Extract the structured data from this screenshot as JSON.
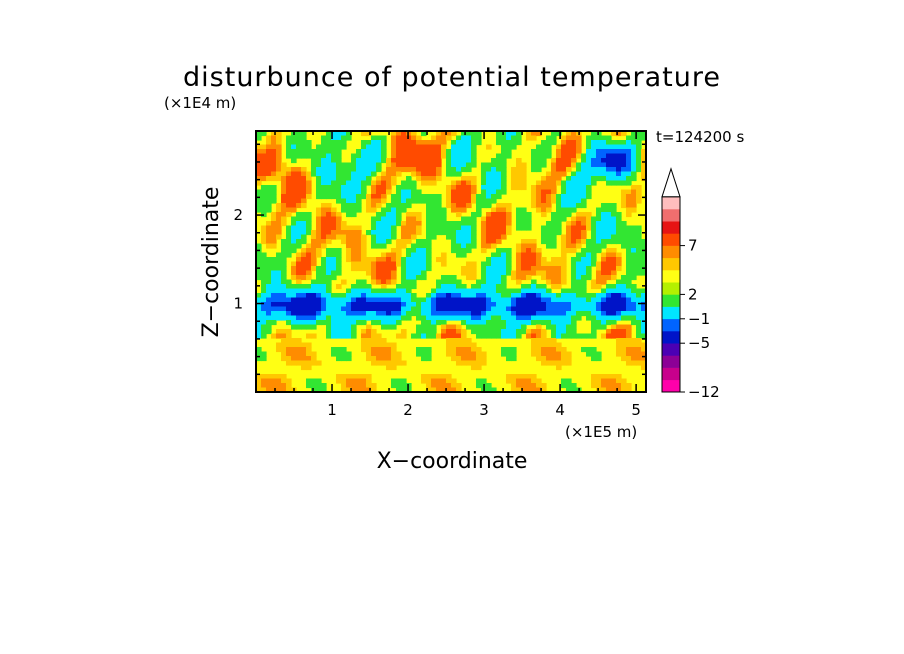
{
  "chart_data": {
    "type": "heatmap",
    "title": "disturbunce of potential temperature",
    "time_label": "t=124200 s",
    "xlabel": "X−coordinate",
    "ylabel": "Z−coordinate",
    "x_multiplier": "(×1E5 m)",
    "y_multiplier": "(×1E4 m)",
    "xlim": [
      0,
      5.13
    ],
    "ylim": [
      0,
      2.95
    ],
    "x_ticks": [
      {
        "value": 1,
        "label": "1"
      },
      {
        "value": 2,
        "label": "2"
      },
      {
        "value": 3,
        "label": "3"
      },
      {
        "value": 4,
        "label": "4"
      },
      {
        "value": 5,
        "label": "5"
      }
    ],
    "y_ticks": [
      {
        "value": 1,
        "label": "1"
      },
      {
        "value": 2,
        "label": "2"
      }
    ],
    "colorbar": {
      "bins": [
        {
          "color": "#ff00aa"
        },
        {
          "color": "#c8008c"
        },
        {
          "color": "#8c0096"
        },
        {
          "color": "#4b00b4"
        },
        {
          "color": "#0014c8"
        },
        {
          "color": "#0064ff"
        },
        {
          "color": "#00e6ff"
        },
        {
          "color": "#32e632"
        },
        {
          "color": "#b4f000"
        },
        {
          "color": "#ffff14"
        },
        {
          "color": "#ffc800"
        },
        {
          "color": "#ff8c00"
        },
        {
          "color": "#ff4b00"
        },
        {
          "color": "#e61414"
        },
        {
          "color": "#f06e6e"
        },
        {
          "color": "#ffbebe"
        }
      ],
      "labels": [
        {
          "bin_edge": 0,
          "text": "−12"
        },
        {
          "bin_edge": 4,
          "text": "−5"
        },
        {
          "bin_edge": 6,
          "text": "−1"
        },
        {
          "bin_edge": 8,
          "text": "2"
        },
        {
          "bin_edge": 12,
          "text": "7"
        }
      ],
      "overflow_arrow_color": "#ffffff"
    }
  }
}
